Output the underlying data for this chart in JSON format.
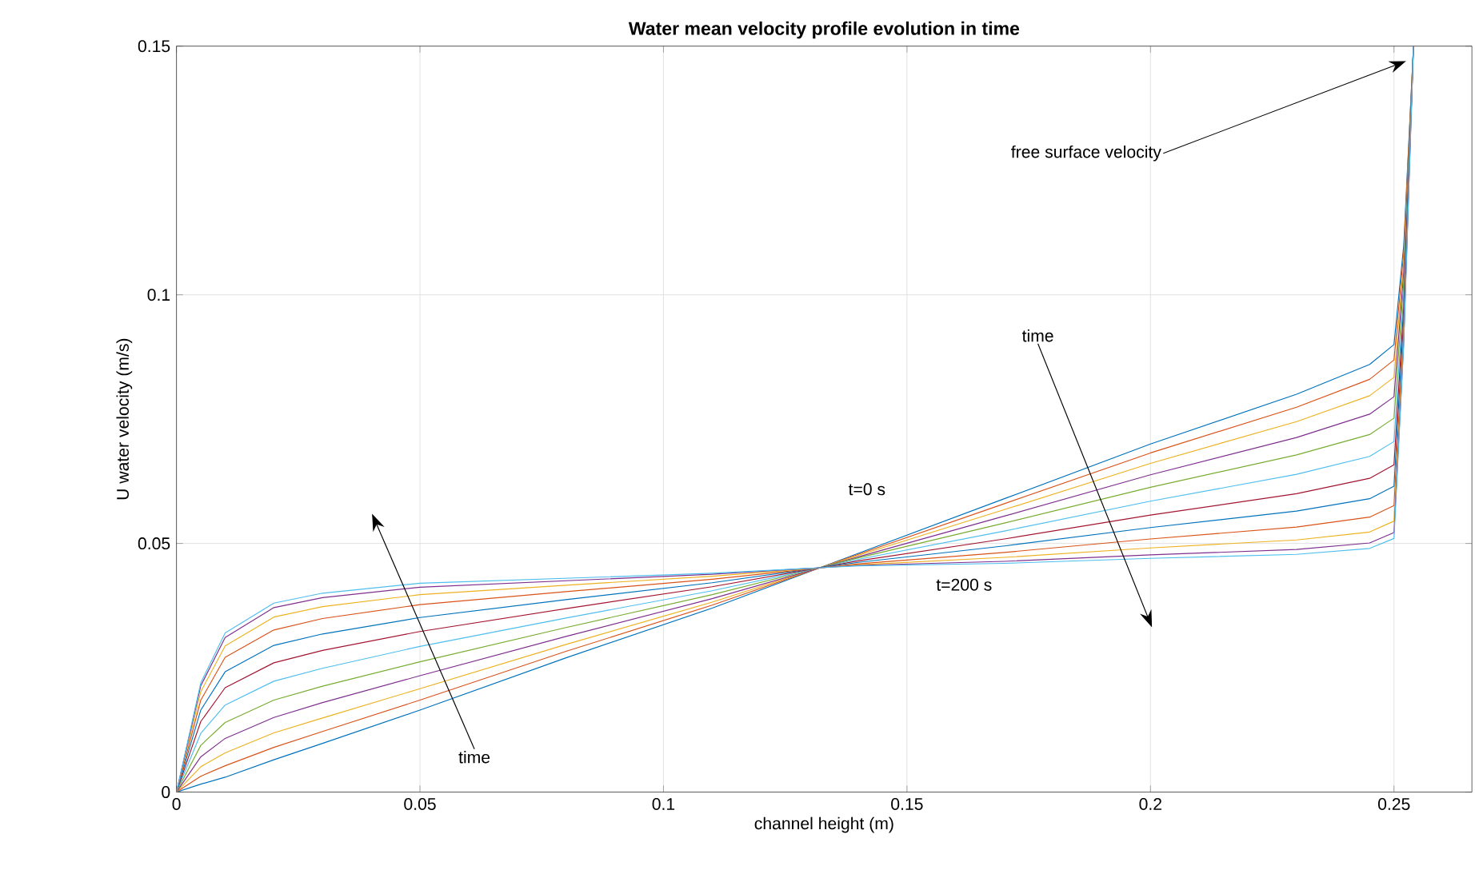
{
  "chart_data": {
    "type": "line",
    "title": "Water mean velocity profile evolution in time",
    "xlabel": "channel height (m)",
    "ylabel": "U water velocity (m/s)",
    "xlim": [
      0,
      0.266
    ],
    "ylim": [
      0,
      0.15
    ],
    "xticks": [
      0,
      0.05,
      0.1,
      0.15,
      0.2,
      0.25
    ],
    "yticks": [
      0,
      0.05,
      0.1,
      0.15
    ],
    "grid": true,
    "annotations": [
      {
        "text": "free surface velocity",
        "x": 0.2525,
        "y": 0.147
      },
      "time",
      "time",
      "t=0 s",
      "t=200 s"
    ],
    "x": [
      0,
      0.005,
      0.01,
      0.02,
      0.03,
      0.05,
      0.08,
      0.11,
      0.14,
      0.17,
      0.2,
      0.23,
      0.245,
      0.25,
      0.252,
      0.254
    ],
    "series": [
      {
        "color": "#0072bd",
        "values": [
          0,
          0.0016,
          0.003,
          0.0065,
          0.0098,
          0.0165,
          0.027,
          0.037,
          0.048,
          0.059,
          0.07,
          0.08,
          0.086,
          0.09,
          0.11,
          0.15
        ]
      },
      {
        "color": "#d95319",
        "values": [
          0,
          0.0032,
          0.0053,
          0.009,
          0.0122,
          0.0185,
          0.0283,
          0.0376,
          0.0478,
          0.058,
          0.0682,
          0.0774,
          0.083,
          0.0869,
          0.1084,
          0.15
        ]
      },
      {
        "color": "#edb120",
        "values": [
          0,
          0.0051,
          0.0079,
          0.0119,
          0.0149,
          0.0208,
          0.0297,
          0.0382,
          0.0476,
          0.0568,
          0.0661,
          0.0745,
          0.0797,
          0.0834,
          0.1066,
          0.15
        ]
      },
      {
        "color": "#7e2f8e",
        "values": [
          0,
          0.0071,
          0.0108,
          0.015,
          0.018,
          0.0234,
          0.0313,
          0.0389,
          0.0473,
          0.0555,
          0.0638,
          0.0713,
          0.076,
          0.0795,
          0.1046,
          0.15
        ]
      },
      {
        "color": "#77ac30",
        "values": [
          0,
          0.0094,
          0.014,
          0.0185,
          0.0213,
          0.0262,
          0.0331,
          0.0397,
          0.0471,
          0.0541,
          0.0613,
          0.0678,
          0.0719,
          0.0752,
          0.1024,
          0.15
        ]
      },
      {
        "color": "#4dbeee",
        "values": [
          0,
          0.0118,
          0.0175,
          0.0223,
          0.0249,
          0.0293,
          0.035,
          0.0405,
          0.0468,
          0.0525,
          0.0585,
          0.0639,
          0.0675,
          0.0705,
          0.1,
          0.15
        ]
      },
      {
        "color": "#a2142f",
        "values": [
          0,
          0.0142,
          0.021,
          0.026,
          0.0285,
          0.0323,
          0.0369,
          0.0413,
          0.0465,
          0.0509,
          0.0557,
          0.06,
          0.0631,
          0.0658,
          0.0976,
          0.15
        ]
      },
      {
        "color": "#0072bd",
        "values": [
          0,
          0.0165,
          0.0242,
          0.0295,
          0.0318,
          0.0351,
          0.0387,
          0.0421,
          0.0462,
          0.0495,
          0.0532,
          0.0565,
          0.059,
          0.0615,
          0.0954,
          0.15
        ]
      },
      {
        "color": "#d95319",
        "values": [
          0,
          0.0185,
          0.0271,
          0.0326,
          0.0349,
          0.0377,
          0.0403,
          0.0428,
          0.0459,
          0.0482,
          0.0509,
          0.0533,
          0.0553,
          0.0576,
          0.0934,
          0.15
        ]
      },
      {
        "color": "#edb120",
        "values": [
          0,
          0.0202,
          0.0294,
          0.0352,
          0.0373,
          0.0397,
          0.0416,
          0.0434,
          0.0457,
          0.0472,
          0.0491,
          0.0507,
          0.0523,
          0.0545,
          0.0918,
          0.15
        ]
      },
      {
        "color": "#7e2f8e",
        "values": [
          0,
          0.0214,
          0.0311,
          0.0371,
          0.0391,
          0.0412,
          0.0425,
          0.0438,
          0.0456,
          0.0464,
          0.0477,
          0.0488,
          0.0501,
          0.0522,
          0.0906,
          0.15
        ]
      },
      {
        "color": "#4dbeee",
        "values": [
          0,
          0.022,
          0.032,
          0.038,
          0.04,
          0.042,
          0.043,
          0.044,
          0.0455,
          0.046,
          0.047,
          0.0478,
          0.049,
          0.051,
          0.09,
          0.15
        ]
      }
    ]
  }
}
